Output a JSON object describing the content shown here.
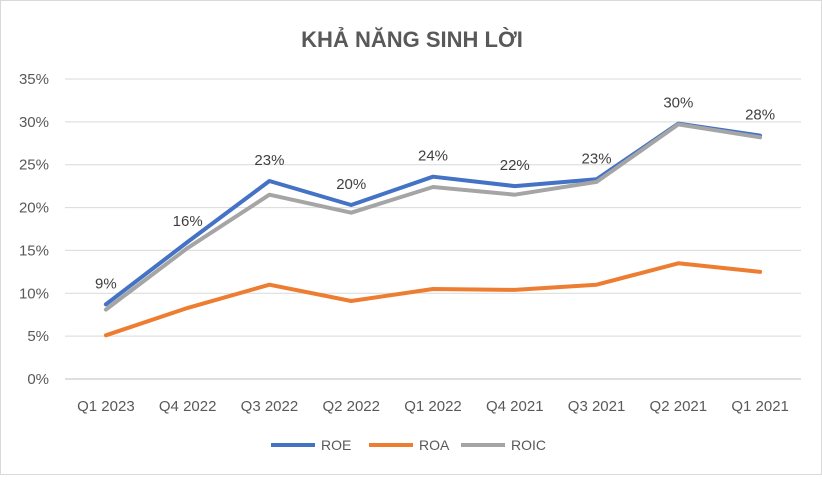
{
  "chart_data": {
    "type": "line",
    "title": "KHẢ NĂNG SINH LỜI",
    "categories": [
      "Q1 2023",
      "Q4 2022",
      "Q3 2022",
      "Q2 2022",
      "Q1 2022",
      "Q4 2021",
      "Q3 2021",
      "Q2 2021",
      "Q1 2021"
    ],
    "series": [
      {
        "name": "ROE",
        "color": "#4472c4",
        "values": [
          8.7,
          16.0,
          23.1,
          20.3,
          23.6,
          22.5,
          23.3,
          29.8,
          28.4
        ]
      },
      {
        "name": "ROA",
        "color": "#ed7d31",
        "values": [
          5.1,
          8.3,
          11.0,
          9.1,
          10.5,
          10.4,
          11.0,
          13.5,
          12.5
        ]
      },
      {
        "name": "ROIC",
        "color": "#a5a5a5",
        "values": [
          8.1,
          15.3,
          21.5,
          19.4,
          22.4,
          21.5,
          23.0,
          29.7,
          28.2
        ]
      }
    ],
    "data_labels": [
      "9%",
      "16%",
      "23%",
      "20%",
      "24%",
      "22%",
      "23%",
      "30%",
      "28%"
    ],
    "y_ticks": [
      "0%",
      "5%",
      "10%",
      "15%",
      "20%",
      "25%",
      "30%",
      "35%"
    ],
    "ylim": [
      0,
      35
    ],
    "grid": true,
    "legend": "bottom"
  }
}
